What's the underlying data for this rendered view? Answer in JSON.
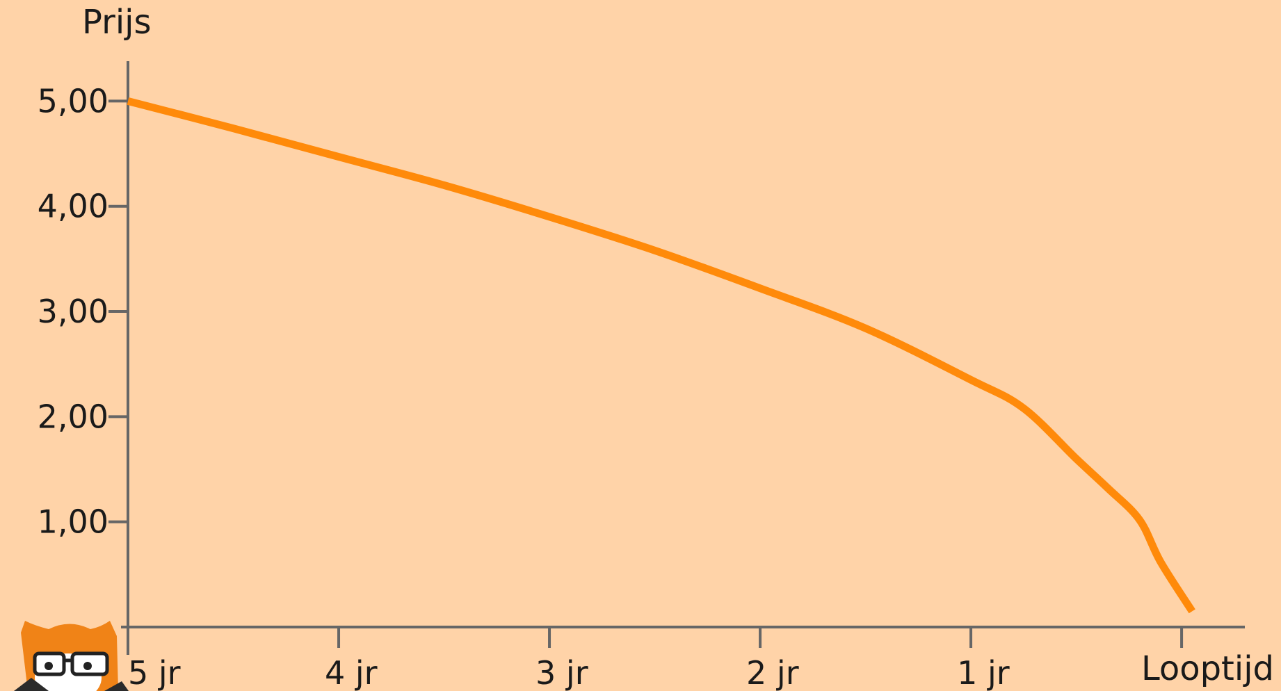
{
  "chart_data": {
    "type": "line",
    "title": "",
    "ylabel": "Prijs",
    "xlabel": "Looptijd",
    "x_tick_labels": [
      "5 jr",
      "4 jr",
      "3 jr",
      "2 jr",
      "1 jr"
    ],
    "y_tick_labels": [
      "1,00",
      "2,00",
      "3,00",
      "4,00",
      "5,00"
    ],
    "y_ticks": [
      1,
      2,
      3,
      4,
      5
    ],
    "ylim": [
      0,
      5.3
    ],
    "xlim": [
      5,
      -0.3
    ],
    "grid": false,
    "legend": "none",
    "series": [
      {
        "x": [
          5,
          4.5,
          4,
          3.5,
          3,
          2.5,
          2,
          1.5,
          1,
          0.75,
          0.5,
          0.35,
          0.2,
          0.1,
          -0.05
        ],
        "y": [
          5.0,
          4.74,
          4.47,
          4.2,
          3.9,
          3.58,
          3.22,
          2.84,
          2.35,
          2.08,
          1.6,
          1.32,
          1.02,
          0.62,
          0.15
        ]
      }
    ],
    "colors": {
      "background": "#FFD3A8",
      "line": "#FF8A0A",
      "axis": "#666666",
      "text": "#1a1a1a"
    }
  }
}
